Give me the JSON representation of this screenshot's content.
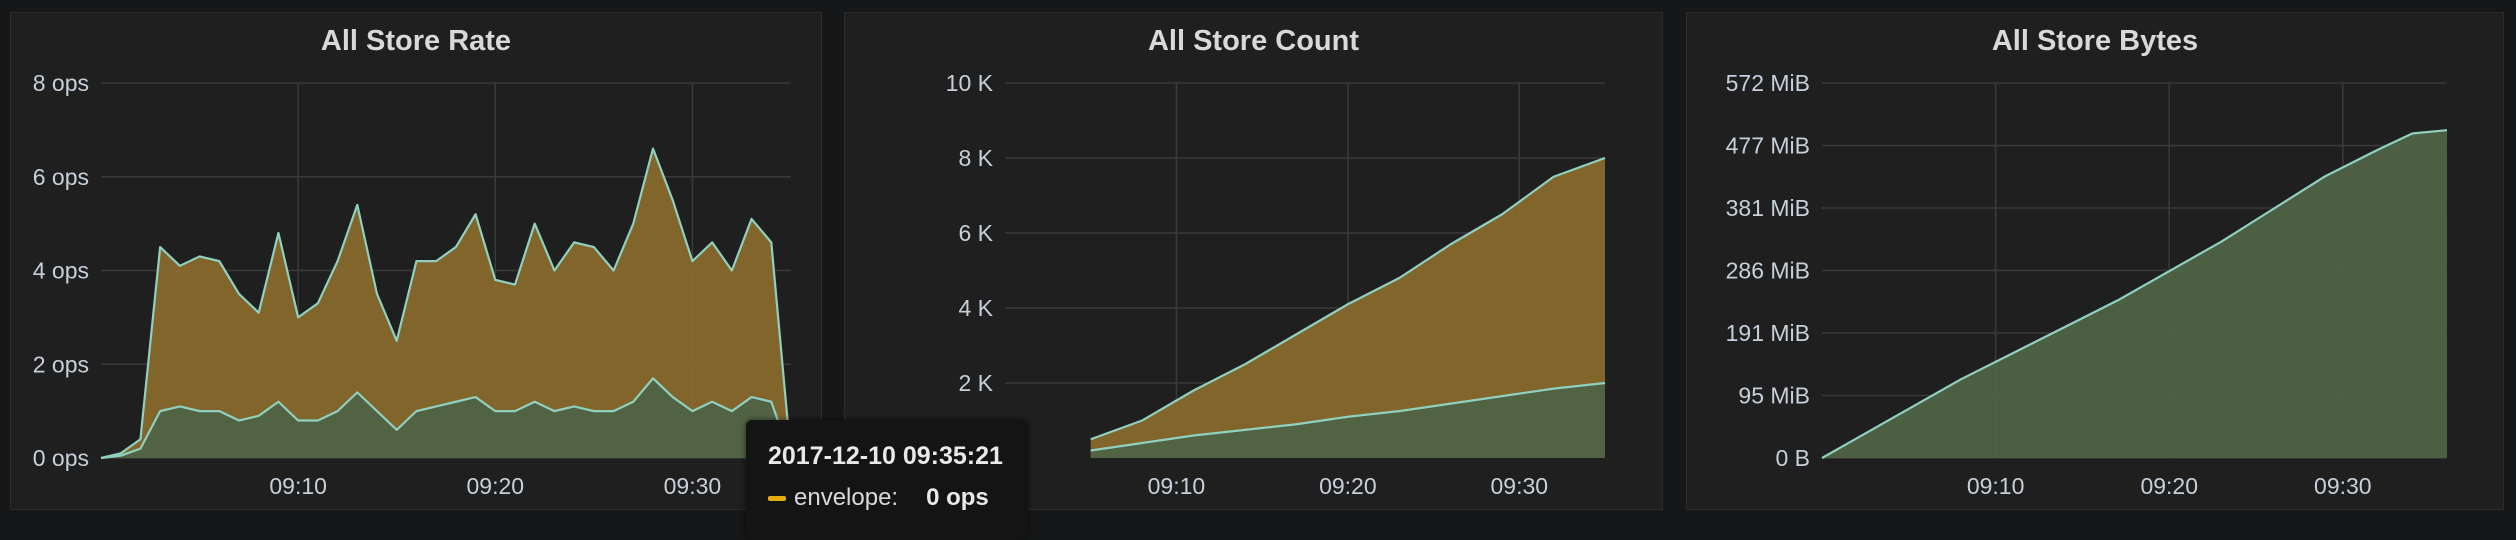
{
  "colors": {
    "envelope": "#e5ac0e",
    "envelope_fill": "#88692c",
    "inner": "#629e51",
    "inner_fill": "#4f6345",
    "line": "#8fd0c0"
  },
  "tooltip": {
    "time": "2017-12-10 09:35:21",
    "series": "envelope:",
    "value": "0 ops"
  },
  "chart_data": [
    {
      "type": "area",
      "title": "All Store Rate",
      "x_ticks": [
        "09:10",
        "09:20",
        "09:30"
      ],
      "x": [
        "09:00",
        "09:01",
        "09:02",
        "09:03",
        "09:04",
        "09:05",
        "09:06",
        "09:07",
        "09:08",
        "09:09",
        "09:10",
        "09:11",
        "09:12",
        "09:13",
        "09:14",
        "09:15",
        "09:16",
        "09:17",
        "09:18",
        "09:19",
        "09:20",
        "09:21",
        "09:22",
        "09:23",
        "09:24",
        "09:25",
        "09:26",
        "09:27",
        "09:28",
        "09:29",
        "09:30",
        "09:31",
        "09:32",
        "09:33",
        "09:34",
        "09:35"
      ],
      "y_ticks": [
        "0 ops",
        "2 ops",
        "4 ops",
        "6 ops",
        "8 ops"
      ],
      "ylim": [
        0,
        8
      ],
      "stacked": true,
      "series": [
        {
          "name": "envelope",
          "values": [
            0,
            0.1,
            0.4,
            4.5,
            4.1,
            4.3,
            4.2,
            3.5,
            3.1,
            4.8,
            3.0,
            3.3,
            4.2,
            5.4,
            3.5,
            2.5,
            4.2,
            4.2,
            4.5,
            5.2,
            3.8,
            3.7,
            5.0,
            4.0,
            4.6,
            4.5,
            4.0,
            5.0,
            6.6,
            5.5,
            4.2,
            4.6,
            4.0,
            5.1,
            4.6,
            0.0
          ]
        },
        {
          "values": [
            0,
            0.05,
            0.2,
            1.0,
            1.1,
            1.0,
            1.0,
            0.8,
            0.9,
            1.2,
            0.8,
            0.8,
            1.0,
            1.4,
            1.0,
            0.6,
            1.0,
            1.1,
            1.2,
            1.3,
            1.0,
            1.0,
            1.2,
            1.0,
            1.1,
            1.0,
            1.0,
            1.2,
            1.7,
            1.3,
            1.0,
            1.2,
            1.0,
            1.3,
            1.2,
            0.0
          ]
        }
      ]
    },
    {
      "type": "area",
      "title": "All Store Count",
      "x_ticks": [
        "09:10",
        "09:20",
        "09:30"
      ],
      "x": [
        "09:05",
        "09:08",
        "09:11",
        "09:14",
        "09:17",
        "09:20",
        "09:23",
        "09:26",
        "09:29",
        "09:32",
        "09:35"
      ],
      "y_ticks": [
        "2 K",
        "4 K",
        "6 K",
        "8 K",
        "10 K"
      ],
      "ylim": [
        0,
        10000
      ],
      "stacked": true,
      "series": [
        {
          "name": "envelope",
          "values": [
            500,
            1000,
            1800,
            2500,
            3300,
            4100,
            4800,
            5700,
            6500,
            7500,
            8000
          ]
        },
        {
          "values": [
            200,
            400,
            600,
            750,
            900,
            1100,
            1250,
            1450,
            1650,
            1850,
            2000
          ]
        }
      ]
    },
    {
      "type": "area",
      "title": "All Store Bytes",
      "x_ticks": [
        "09:10",
        "09:20",
        "09:30"
      ],
      "x": [
        "09:00",
        "09:02",
        "09:05",
        "09:08",
        "09:11",
        "09:14",
        "09:17",
        "09:20",
        "09:23",
        "09:26",
        "09:29",
        "09:32",
        "09:34",
        "09:36"
      ],
      "y_ticks": [
        "0 B",
        "95 MiB",
        "191 MiB",
        "286 MiB",
        "381 MiB",
        "477 MiB",
        "572 MiB"
      ],
      "ylim": [
        0,
        572
      ],
      "series": [
        {
          "values": [
            0,
            30,
            75,
            120,
            160,
            200,
            240,
            285,
            330,
            380,
            430,
            470,
            495,
            500
          ]
        }
      ]
    }
  ]
}
